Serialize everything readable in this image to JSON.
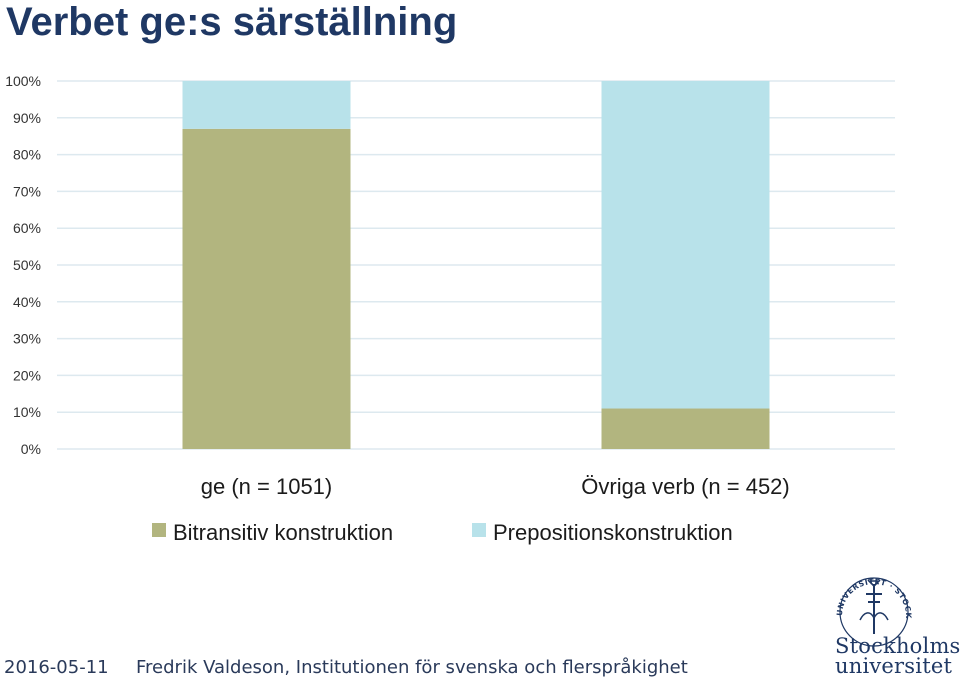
{
  "slide": {
    "title": "Verbet ge:s särställning",
    "footer_date": "2016-05-11",
    "footer_author": "Fredrik Valdeson, Institutionen för svenska och flerspråkighet"
  },
  "logo": {
    "seal_text": "UNIVERSITET · STOCKHOLMS",
    "wordmark_line1": "Stockholms",
    "wordmark_line2": "universitet"
  },
  "colors": {
    "title": "#1f3864",
    "bitransitiv": "#b2b57f",
    "preposition": "#b8e2ea",
    "gridline": "#dde9ef",
    "axis_text": "#333333"
  },
  "chart_data": {
    "type": "bar",
    "stacked": true,
    "percent": true,
    "categories": [
      "ge (n = 1051)",
      "Övriga verb (n = 452)"
    ],
    "series": [
      {
        "name": "Bitransitiv konstruktion",
        "values": [
          87,
          11
        ],
        "color": "#b2b57f"
      },
      {
        "name": "Prepositionskonstruktion",
        "values": [
          13,
          89
        ],
        "color": "#b8e2ea"
      }
    ],
    "ylim": [
      0,
      100
    ],
    "yticks": [
      "0%",
      "10%",
      "20%",
      "30%",
      "40%",
      "50%",
      "60%",
      "70%",
      "80%",
      "90%",
      "100%"
    ],
    "grid": true,
    "legend_position": "bottom"
  }
}
